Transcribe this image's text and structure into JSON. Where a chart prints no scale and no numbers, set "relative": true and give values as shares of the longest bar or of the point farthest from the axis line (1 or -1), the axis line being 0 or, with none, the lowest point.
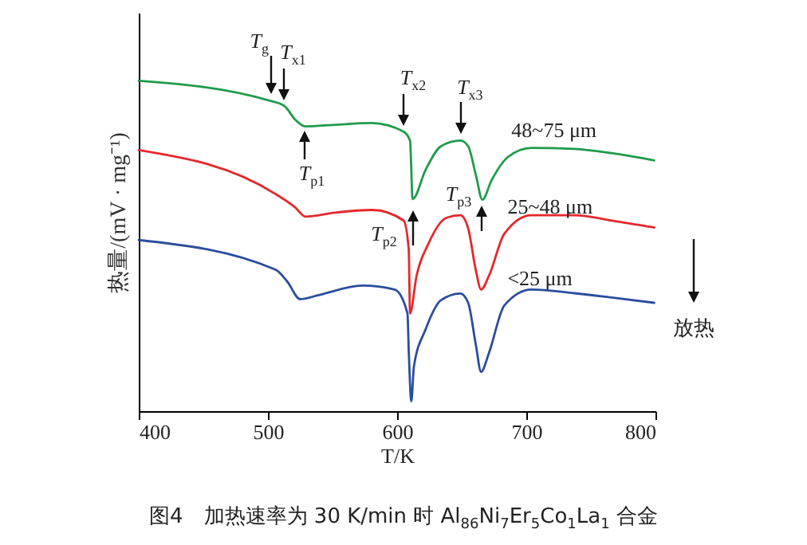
{
  "chart_data": {
    "type": "line",
    "relative": true,
    "xlabel": "T/K",
    "ylabel": "热量/(mV · mg⁻¹)",
    "xlim": [
      400,
      800
    ],
    "xticks": [
      400,
      500,
      600,
      700,
      800
    ],
    "line_style": "solid",
    "series": [
      {
        "name": "48~75 μm",
        "color": "#1f9b4c",
        "x": [
          400,
          502,
          513,
          521,
          529,
          552,
          580,
          605,
          610,
          612,
          622,
          634,
          649,
          655,
          661,
          666,
          673,
          686,
          704,
          737,
          766,
          799
        ],
        "values": [
          1.0,
          0.939,
          0.923,
          0.883,
          0.862,
          0.867,
          0.872,
          0.846,
          0.819,
          0.642,
          0.73,
          0.802,
          0.819,
          0.802,
          0.714,
          0.64,
          0.698,
          0.77,
          0.797,
          0.794,
          0.781,
          0.759
        ]
      },
      {
        "name": "25~48 μm",
        "color": "#e5282c",
        "x": [
          400,
          506,
          521,
          529,
          552,
          581,
          605,
          609,
          610,
          615,
          624,
          638,
          649,
          655,
          661,
          665,
          671,
          683,
          704,
          737,
          766,
          799
        ],
        "values": [
          0.79,
          0.657,
          0.617,
          0.589,
          0.601,
          0.609,
          0.577,
          0.489,
          0.296,
          0.409,
          0.505,
          0.585,
          0.593,
          0.553,
          0.425,
          0.368,
          0.409,
          0.537,
          0.593,
          0.593,
          0.577,
          0.556
        ]
      },
      {
        "name": "<25 μm",
        "color": "#2b4d9e",
        "x": [
          400,
          506,
          515,
          525,
          540,
          573,
          598,
          608,
          609,
          611,
          613,
          622,
          634,
          649,
          655,
          661,
          665,
          671,
          683,
          704,
          737,
          766,
          799
        ],
        "values": [
          0.518,
          0.428,
          0.392,
          0.339,
          0.352,
          0.38,
          0.368,
          0.296,
          0.183,
          0.03,
          0.135,
          0.247,
          0.336,
          0.356,
          0.328,
          0.199,
          0.119,
          0.175,
          0.32,
          0.368,
          0.357,
          0.344,
          0.328
        ]
      }
    ],
    "annotations": [
      {
        "text": "T$_{g}$",
        "x": 502,
        "y": 0.939
      },
      {
        "text": "T$_{x1}$",
        "x": 512,
        "y": 0.923
      },
      {
        "text": "T$_{x2}$",
        "x": 605,
        "y": 0.846
      },
      {
        "text": "T$_{x3}$",
        "x": 649,
        "y": 0.819
      },
      {
        "text": "T$_{p1}$",
        "x": 529,
        "y": 0.862
      },
      {
        "text": "T$_{p2}$",
        "x": 612,
        "y": 0.642
      },
      {
        "text": "T$_{p3}$",
        "x": 666,
        "y": 0.64
      },
      "放热",
      "图4　加热速率为 30 K/min 时 Al$_{86}$Ni$_{7}$Er$_{5}$Co$_{1}$La$_{1}$ 合金"
    ]
  }
}
